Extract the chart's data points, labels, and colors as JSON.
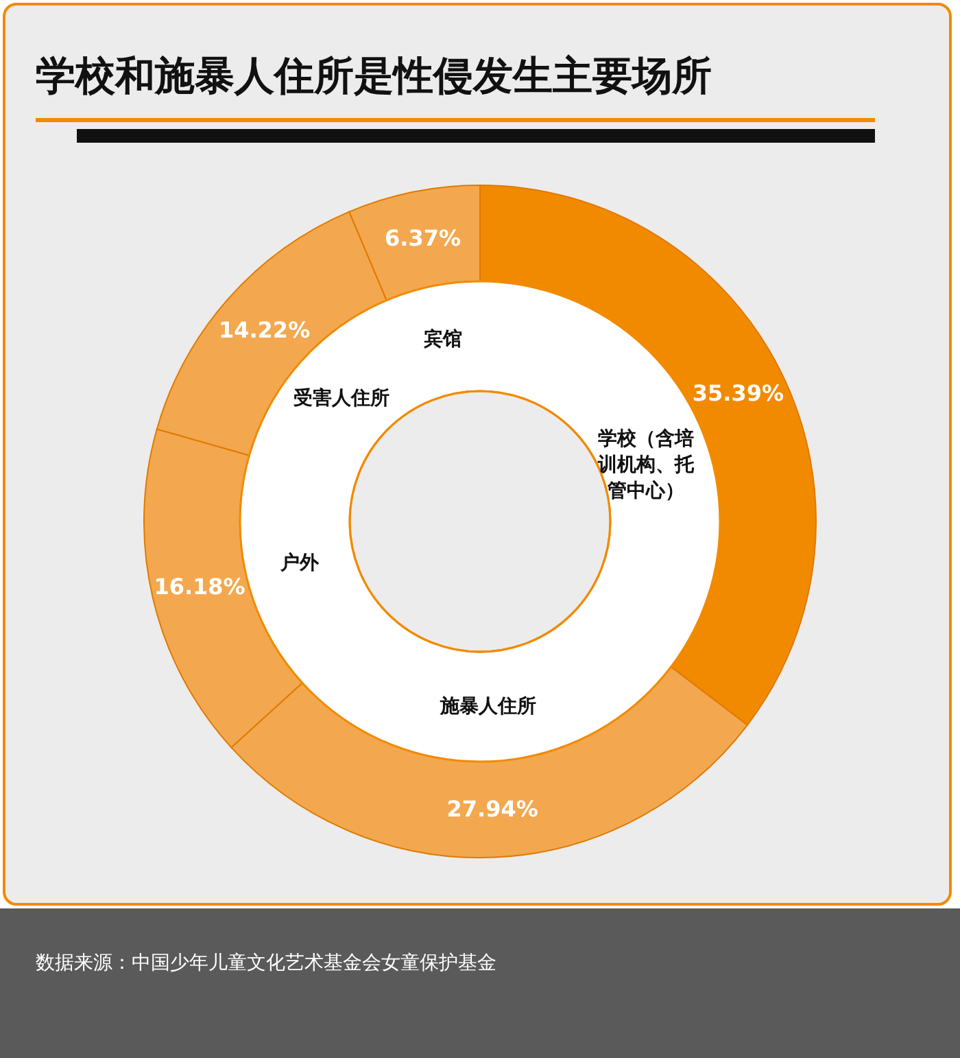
{
  "chart_data": {
    "type": "donut",
    "title": "学校和施暴人住所是性侵发生主要场所",
    "categories": [
      "学校（含培训机构、托管中心）",
      "施暴人住所",
      "户外",
      "受害人住所",
      "宾馆"
    ],
    "values": [
      35.39,
      27.94,
      16.18,
      14.22,
      6.37
    ],
    "value_labels": [
      "35.39%",
      "27.94%",
      "16.18%",
      "14.22%",
      "6.37%"
    ],
    "colors": [
      "#f28a00",
      "#f3a84f",
      "#f3a84f",
      "#f3a84f",
      "#f3a84f"
    ],
    "annotations": [
      "数据来源：中国少年儿童文化艺术基金会女童保护基金"
    ]
  }
}
